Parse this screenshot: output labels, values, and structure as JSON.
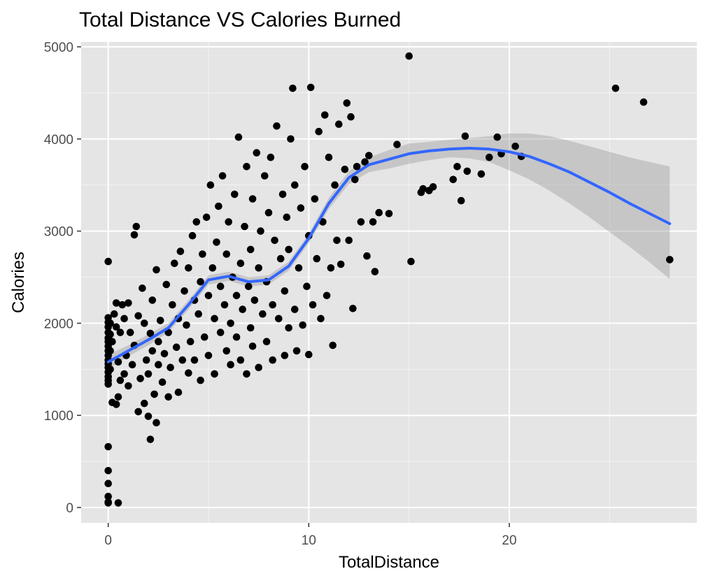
{
  "chart_data": {
    "type": "scatter",
    "title": "Total Distance VS Calories Burned",
    "xlabel": "TotalDistance",
    "ylabel": "Calories",
    "xlim": [
      -1.35,
      29.35
    ],
    "ylim": [
      -167,
      5053
    ],
    "x_ticks": [
      0,
      10,
      20
    ],
    "y_ticks": [
      0,
      1000,
      2000,
      3000,
      4000,
      5000
    ],
    "x_minor_gridlines": [
      5,
      15,
      25
    ],
    "y_minor_gridlines": [
      500,
      1500,
      2500,
      3500,
      4500
    ],
    "grid": true,
    "legend": "none",
    "colors": {
      "panel_background": "#E5E5E5",
      "grid_major": "#FFFFFF",
      "points": "#000000",
      "smooth_line": "#3366FF",
      "confidence_band": "#999999"
    },
    "series": [
      {
        "kind": "points",
        "points": [
          [
            0,
            50
          ],
          [
            0,
            60
          ],
          [
            0,
            120
          ],
          [
            0,
            260
          ],
          [
            0,
            400
          ],
          [
            0,
            660
          ],
          [
            0,
            1340
          ],
          [
            0,
            1380
          ],
          [
            0,
            1420
          ],
          [
            0,
            1470
          ],
          [
            0,
            1520
          ],
          [
            0,
            1560
          ],
          [
            0,
            1600
          ],
          [
            0,
            1650
          ],
          [
            0,
            1700
          ],
          [
            0,
            1750
          ],
          [
            0,
            1800
          ],
          [
            0,
            1840
          ],
          [
            0,
            1900
          ],
          [
            0,
            1960
          ],
          [
            0,
            2010
          ],
          [
            0,
            2060
          ],
          [
            0,
            2670
          ],
          [
            0.1,
            1500
          ],
          [
            0.1,
            1700
          ],
          [
            0.1,
            1880
          ],
          [
            0.1,
            2000
          ],
          [
            0.2,
            1140
          ],
          [
            0.2,
            1800
          ],
          [
            0.3,
            2100
          ],
          [
            0.4,
            1120
          ],
          [
            0.4,
            1960
          ],
          [
            0.4,
            2220
          ],
          [
            0.5,
            50
          ],
          [
            0.5,
            1200
          ],
          [
            0.5,
            1580
          ],
          [
            0.6,
            1380
          ],
          [
            0.6,
            1900
          ],
          [
            0.7,
            2200
          ],
          [
            0.8,
            1450
          ],
          [
            0.8,
            2050
          ],
          [
            0.9,
            1650
          ],
          [
            1.0,
            1320
          ],
          [
            1.0,
            2220
          ],
          [
            1.1,
            1900
          ],
          [
            1.2,
            1550
          ],
          [
            1.3,
            2960
          ],
          [
            1.4,
            3050
          ],
          [
            1.3,
            1760
          ],
          [
            1.5,
            1040
          ],
          [
            1.5,
            2080
          ],
          [
            1.6,
            1400
          ],
          [
            1.7,
            2380
          ],
          [
            1.8,
            1130
          ],
          [
            1.8,
            2000
          ],
          [
            1.9,
            1600
          ],
          [
            2.0,
            990
          ],
          [
            2.0,
            1450
          ],
          [
            2.1,
            740
          ],
          [
            2.1,
            1890
          ],
          [
            2.2,
            1700
          ],
          [
            2.2,
            2250
          ],
          [
            2.3,
            1230
          ],
          [
            2.4,
            920
          ],
          [
            2.4,
            2580
          ],
          [
            2.5,
            1550
          ],
          [
            2.5,
            1800
          ],
          [
            2.6,
            2030
          ],
          [
            2.7,
            1360
          ],
          [
            2.8,
            1670
          ],
          [
            2.9,
            2420
          ],
          [
            3.0,
            1200
          ],
          [
            3.0,
            1900
          ],
          [
            3.1,
            1520
          ],
          [
            3.2,
            2200
          ],
          [
            3.3,
            2650
          ],
          [
            3.4,
            1740
          ],
          [
            3.5,
            1250
          ],
          [
            3.5,
            2050
          ],
          [
            3.6,
            2780
          ],
          [
            3.7,
            1600
          ],
          [
            3.8,
            2350
          ],
          [
            3.9,
            1980
          ],
          [
            4.0,
            1460
          ],
          [
            4.0,
            2600
          ],
          [
            4.1,
            1800
          ],
          [
            4.2,
            2950
          ],
          [
            4.3,
            1600
          ],
          [
            4.3,
            2250
          ],
          [
            4.4,
            3100
          ],
          [
            4.5,
            2100
          ],
          [
            4.6,
            1380
          ],
          [
            4.6,
            2450
          ],
          [
            4.7,
            2750
          ],
          [
            4.8,
            1850
          ],
          [
            4.9,
            3150
          ],
          [
            5.0,
            1650
          ],
          [
            5.0,
            2300
          ],
          [
            5.1,
            3500
          ],
          [
            5.2,
            2600
          ],
          [
            5.3,
            1450
          ],
          [
            5.3,
            2050
          ],
          [
            5.4,
            2880
          ],
          [
            5.5,
            3270
          ],
          [
            5.6,
            1900
          ],
          [
            5.6,
            2400
          ],
          [
            5.7,
            3600
          ],
          [
            5.8,
            2200
          ],
          [
            5.9,
            1700
          ],
          [
            5.9,
            2750
          ],
          [
            6.0,
            3100
          ],
          [
            6.1,
            1550
          ],
          [
            6.1,
            2000
          ],
          [
            6.2,
            2500
          ],
          [
            6.3,
            3400
          ],
          [
            6.4,
            1850
          ],
          [
            6.4,
            2300
          ],
          [
            6.5,
            4020
          ],
          [
            6.6,
            1600
          ],
          [
            6.6,
            2650
          ],
          [
            6.7,
            2150
          ],
          [
            6.8,
            3050
          ],
          [
            6.9,
            1450
          ],
          [
            6.9,
            3700
          ],
          [
            7.0,
            2400
          ],
          [
            7.1,
            1950
          ],
          [
            7.1,
            2800
          ],
          [
            7.2,
            1750
          ],
          [
            7.2,
            3350
          ],
          [
            7.3,
            2250
          ],
          [
            7.4,
            3850
          ],
          [
            7.5,
            1520
          ],
          [
            7.5,
            2600
          ],
          [
            7.6,
            3000
          ],
          [
            7.7,
            2100
          ],
          [
            7.8,
            3600
          ],
          [
            7.9,
            1800
          ],
          [
            7.9,
            2450
          ],
          [
            8.0,
            3200
          ],
          [
            8.1,
            3800
          ],
          [
            8.2,
            1600
          ],
          [
            8.2,
            2200
          ],
          [
            8.3,
            2900
          ],
          [
            8.4,
            4140
          ],
          [
            8.5,
            2050
          ],
          [
            8.6,
            2700
          ],
          [
            8.7,
            3400
          ],
          [
            8.8,
            1650
          ],
          [
            8.8,
            2350
          ],
          [
            8.9,
            3150
          ],
          [
            9.0,
            1950
          ],
          [
            9.0,
            2800
          ],
          [
            9.1,
            4000
          ],
          [
            9.2,
            4550
          ],
          [
            9.3,
            2150
          ],
          [
            9.3,
            3500
          ],
          [
            9.4,
            1700
          ],
          [
            9.5,
            2600
          ],
          [
            9.6,
            3250
          ],
          [
            9.7,
            1980
          ],
          [
            9.8,
            3700
          ],
          [
            9.9,
            2400
          ],
          [
            10.0,
            1660
          ],
          [
            10.0,
            2950
          ],
          [
            10.1,
            4560
          ],
          [
            10.2,
            2200
          ],
          [
            10.3,
            3350
          ],
          [
            10.4,
            2700
          ],
          [
            10.5,
            4080
          ],
          [
            10.6,
            2050
          ],
          [
            10.7,
            3100
          ],
          [
            10.8,
            4260
          ],
          [
            10.9,
            2300
          ],
          [
            11.0,
            3800
          ],
          [
            11.1,
            2600
          ],
          [
            11.2,
            1760
          ],
          [
            11.3,
            3500
          ],
          [
            11.4,
            2900
          ],
          [
            11.5,
            4160
          ],
          [
            11.6,
            2640
          ],
          [
            11.8,
            3670
          ],
          [
            11.9,
            4390
          ],
          [
            12.0,
            2900
          ],
          [
            12.1,
            4240
          ],
          [
            12.2,
            2160
          ],
          [
            12.3,
            3560
          ],
          [
            12.4,
            3700
          ],
          [
            12.6,
            3100
          ],
          [
            12.8,
            3750
          ],
          [
            12.9,
            2730
          ],
          [
            13.0,
            3820
          ],
          [
            13.2,
            3100
          ],
          [
            13.3,
            2560
          ],
          [
            13.5,
            3200
          ],
          [
            14.0,
            3190
          ],
          [
            14.4,
            3940
          ],
          [
            15.0,
            4900
          ],
          [
            15.1,
            2670
          ],
          [
            15.6,
            3420
          ],
          [
            15.7,
            3460
          ],
          [
            16.0,
            3440
          ],
          [
            16.2,
            3480
          ],
          [
            17.2,
            3560
          ],
          [
            17.4,
            3700
          ],
          [
            17.6,
            3330
          ],
          [
            17.8,
            4030
          ],
          [
            17.9,
            3650
          ],
          [
            18.6,
            3620
          ],
          [
            19.0,
            3800
          ],
          [
            19.4,
            4020
          ],
          [
            19.6,
            3840
          ],
          [
            20.3,
            3920
          ],
          [
            20.6,
            3810
          ],
          [
            25.3,
            4550
          ],
          [
            26.7,
            4400
          ],
          [
            28.0,
            2690
          ]
        ]
      },
      {
        "kind": "smooth",
        "x": [
          0,
          1,
          2,
          3,
          4,
          5,
          6,
          7,
          8,
          9,
          10,
          11,
          12,
          13,
          14,
          15,
          16,
          17,
          18,
          19,
          20,
          21,
          22,
          23,
          24,
          25,
          26,
          27,
          28
        ],
        "y": [
          1580,
          1700,
          1820,
          1950,
          2200,
          2470,
          2510,
          2450,
          2470,
          2620,
          2920,
          3300,
          3580,
          3720,
          3780,
          3840,
          3870,
          3890,
          3900,
          3890,
          3860,
          3810,
          3730,
          3640,
          3530,
          3420,
          3300,
          3190,
          3080
        ],
        "lower": [
          1500,
          1640,
          1760,
          1900,
          2150,
          2420,
          2460,
          2400,
          2420,
          2570,
          2870,
          3240,
          3510,
          3640,
          3680,
          3730,
          3770,
          3800,
          3790,
          3750,
          3660,
          3560,
          3440,
          3300,
          3150,
          2990,
          2830,
          2660,
          2480
        ],
        "upper": [
          1660,
          1760,
          1880,
          2000,
          2250,
          2520,
          2560,
          2500,
          2520,
          2670,
          2970,
          3360,
          3650,
          3800,
          3880,
          3950,
          3970,
          3990,
          4010,
          4030,
          4060,
          4060,
          4030,
          3980,
          3920,
          3860,
          3800,
          3750,
          3700
        ]
      }
    ]
  }
}
